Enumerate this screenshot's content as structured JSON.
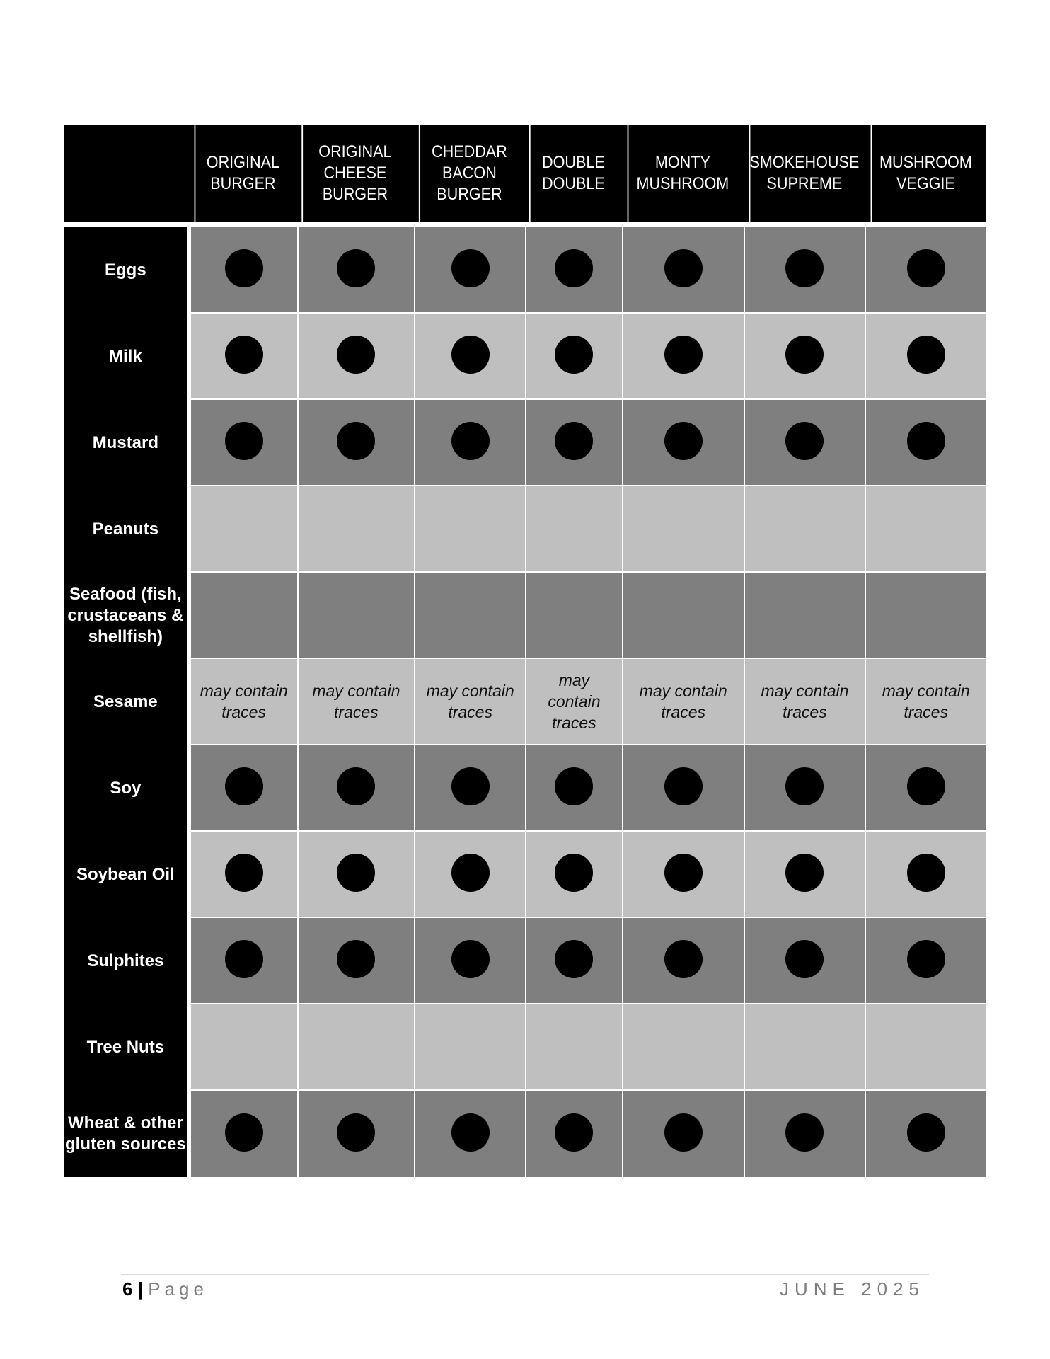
{
  "columns": [
    "ORIGINAL BURGER",
    "ORIGINAL CHEESE BURGER",
    "CHEDDAR BACON BURGER",
    "DOUBLE DOUBLE",
    "MONTY MUSHROOM",
    "SMOKEHOUSE SUPREME",
    "MUSHROOM VEGGIE"
  ],
  "rows": [
    {
      "allergen": "Eggs",
      "values": [
        "dot",
        "dot",
        "dot",
        "dot",
        "dot",
        "dot",
        "dot"
      ]
    },
    {
      "allergen": "Milk",
      "values": [
        "dot",
        "dot",
        "dot",
        "dot",
        "dot",
        "dot",
        "dot"
      ]
    },
    {
      "allergen": "Mustard",
      "values": [
        "dot",
        "dot",
        "dot",
        "dot",
        "dot",
        "dot",
        "dot"
      ]
    },
    {
      "allergen": "Peanuts",
      "values": [
        "",
        "",
        "",
        "",
        "",
        "",
        ""
      ]
    },
    {
      "allergen": "Seafood (fish, crustaceans & shellfish)",
      "values": [
        "",
        "",
        "",
        "",
        "",
        "",
        ""
      ]
    },
    {
      "allergen": "Sesame",
      "values": [
        "may contain traces",
        "may contain traces",
        "may contain traces",
        "may contain traces",
        "may contain traces",
        "may contain traces",
        "may contain traces"
      ]
    },
    {
      "allergen": "Soy",
      "values": [
        "dot",
        "dot",
        "dot",
        "dot",
        "dot",
        "dot",
        "dot"
      ]
    },
    {
      "allergen": "Soybean Oil",
      "values": [
        "dot",
        "dot",
        "dot",
        "dot",
        "dot",
        "dot",
        "dot"
      ]
    },
    {
      "allergen": "Sulphites",
      "values": [
        "dot",
        "dot",
        "dot",
        "dot",
        "dot",
        "dot",
        "dot"
      ]
    },
    {
      "allergen": "Tree Nuts",
      "values": [
        "",
        "",
        "",
        "",
        "",
        "",
        ""
      ]
    },
    {
      "allergen": "Wheat & other gluten sources",
      "values": [
        "dot",
        "dot",
        "dot",
        "dot",
        "dot",
        "dot",
        "dot"
      ]
    }
  ],
  "footer": {
    "page_number": "6",
    "separator": "|",
    "page_label": "Page",
    "date": "JUNE 2025"
  },
  "colors": {
    "header": "#000000",
    "dark_row": "#7f7f7f",
    "light_row": "#bfbfbf"
  }
}
